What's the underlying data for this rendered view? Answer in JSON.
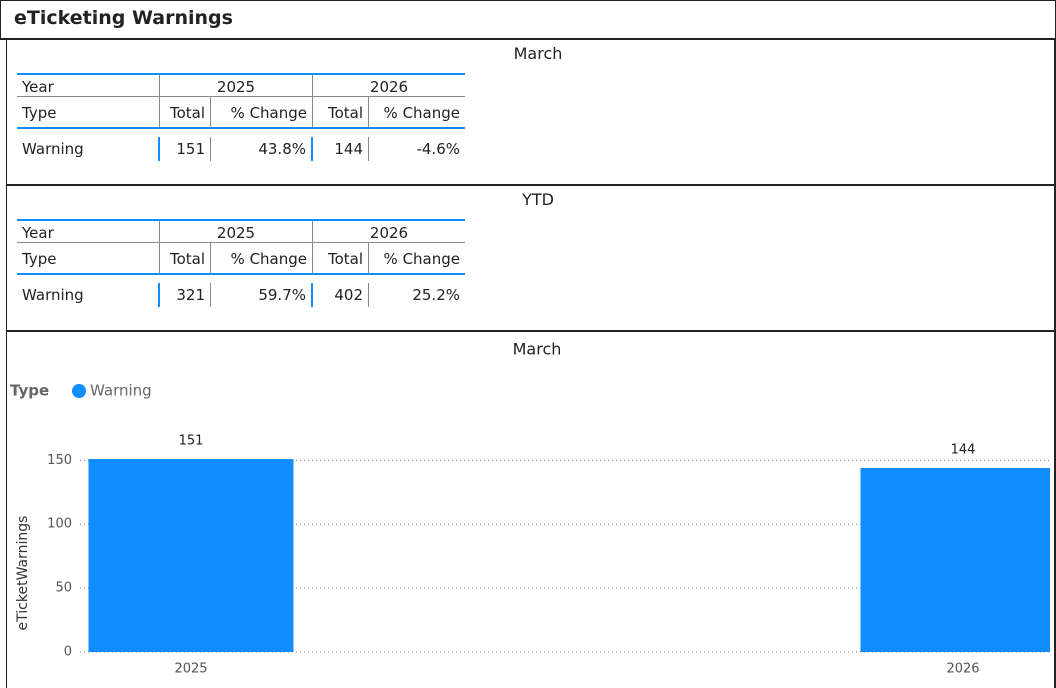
{
  "header": {
    "title": "eTicketing Warnings"
  },
  "tables": [
    {
      "title": "March",
      "year_label": "Year",
      "years": [
        "2025",
        "2026"
      ],
      "type_label": "Type",
      "columns": [
        "Total",
        "% Change",
        "Total",
        "% Change"
      ],
      "rows": [
        [
          "Warning",
          "151",
          "43.8%",
          "144",
          "-4.6%"
        ]
      ]
    },
    {
      "title": "YTD",
      "year_label": "Year",
      "years": [
        "2025",
        "2026"
      ],
      "type_label": "Type",
      "columns": [
        "Total",
        "% Change",
        "Total",
        "% Change"
      ],
      "rows": [
        [
          "Warning",
          "321",
          "59.7%",
          "402",
          "25.2%"
        ]
      ]
    }
  ],
  "chart_data": {
    "type": "bar",
    "title": "March",
    "legend_title": "Type",
    "categories": [
      "2025",
      "2026"
    ],
    "series": [
      {
        "name": "Warning",
        "color": "#118dff",
        "values": [
          151,
          144
        ]
      }
    ],
    "ylabel": "eTicketWarnings",
    "ylim": [
      0,
      180
    ],
    "yticks": [
      0,
      50,
      100,
      150
    ],
    "grid": true
  }
}
